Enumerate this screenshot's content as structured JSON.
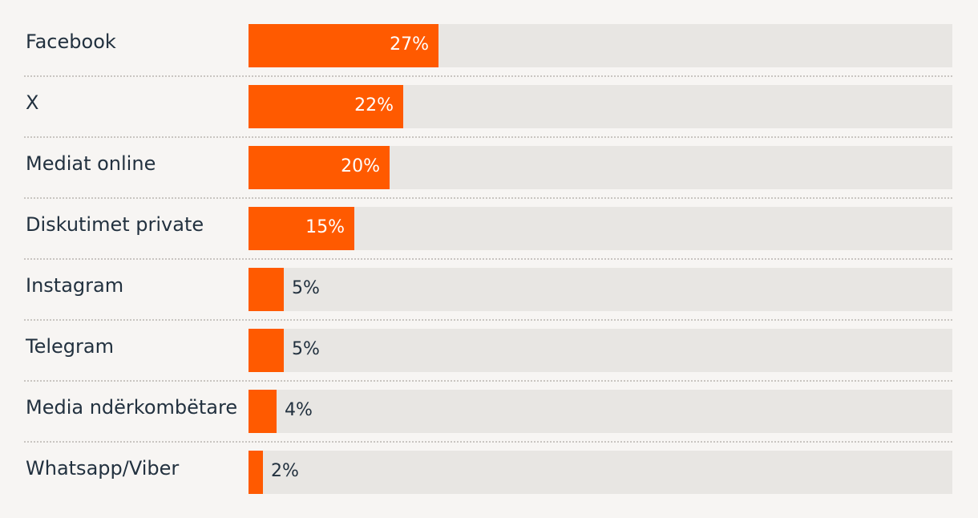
{
  "chart_data": {
    "type": "bar",
    "orientation": "horizontal",
    "categories": [
      "Facebook",
      "X",
      "Mediat online",
      "Diskutimet private",
      "Instagram",
      "Telegram",
      "Media ndërkombëtare",
      "Whatsapp/Viber"
    ],
    "values": [
      27,
      22,
      20,
      15,
      5,
      5,
      4,
      2
    ],
    "value_labels": [
      "27%",
      "22%",
      "20%",
      "15%",
      "5%",
      "5%",
      "4%",
      "2%"
    ],
    "xlim": [
      0,
      100
    ],
    "grid": false,
    "legend": "none",
    "colors": {
      "bar": "#ff5a00",
      "track": "#e8e6e3",
      "background": "#f7f5f3",
      "text": "#22313f",
      "divider": "#c9c5c1"
    }
  }
}
